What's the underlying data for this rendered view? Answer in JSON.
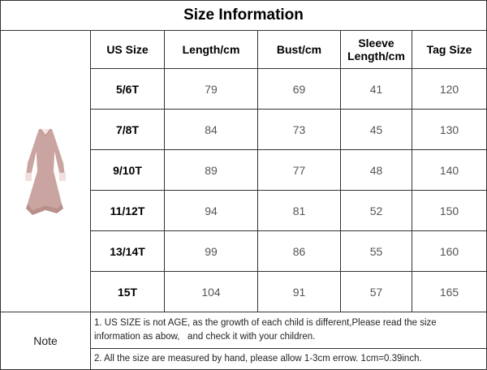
{
  "header": {
    "title": "Size Information"
  },
  "table": {
    "columns": [
      "US Size",
      "Length/cm",
      "Bust/cm",
      "Sleeve Length/cm",
      "Tag Size"
    ],
    "rows": [
      [
        "5/6T",
        79,
        69,
        41,
        120
      ],
      [
        "7/8T",
        84,
        73,
        45,
        130
      ],
      [
        "9/10T",
        89,
        77,
        48,
        140
      ],
      [
        "11/12T",
        94,
        81,
        52,
        150
      ],
      [
        "13/14T",
        99,
        86,
        55,
        160
      ],
      [
        "15T",
        104,
        91,
        57,
        165
      ]
    ]
  },
  "note": {
    "label": "Note",
    "lines": [
      "1. US SIZE is not AGE, as the growth of each child is different,Please read the size information as abow,   and check it with your children.",
      "2. All the size are measured by hand, please allow 1-3cm errow. 1cm=0.39inch."
    ]
  }
}
